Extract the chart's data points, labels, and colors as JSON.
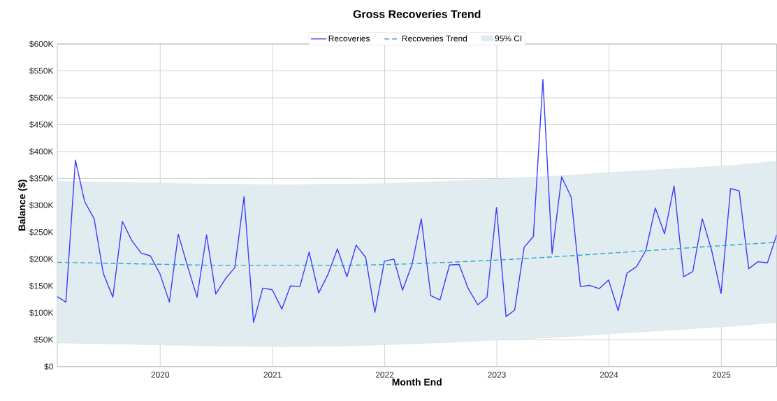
{
  "chart_data": {
    "type": "line",
    "title": "Gross Recoveries Trend",
    "xlabel": "Month End",
    "ylabel": "Balance ($)",
    "xlim": [
      "2019-01-31",
      "2025-06-30"
    ],
    "xticks": [
      {
        "value": "2020-01-01",
        "label": "2020"
      },
      {
        "value": "2021-01-01",
        "label": "2021"
      },
      {
        "value": "2022-01-01",
        "label": "2022"
      },
      {
        "value": "2023-01-01",
        "label": "2023"
      },
      {
        "value": "2024-01-01",
        "label": "2024"
      },
      {
        "value": "2025-01-01",
        "label": "2025"
      }
    ],
    "ylim": [
      0,
      600000
    ],
    "yticks": [
      {
        "value": 0,
        "label": "$0"
      },
      {
        "value": 50000,
        "label": "$50K"
      },
      {
        "value": 100000,
        "label": "$100K"
      },
      {
        "value": 150000,
        "label": "$150K"
      },
      {
        "value": 200000,
        "label": "$200K"
      },
      {
        "value": 250000,
        "label": "$250K"
      },
      {
        "value": 300000,
        "label": "$300K"
      },
      {
        "value": 350000,
        "label": "$350K"
      },
      {
        "value": 400000,
        "label": "$400K"
      },
      {
        "value": 450000,
        "label": "$450K"
      },
      {
        "value": 500000,
        "label": "$500K"
      },
      {
        "value": 550000,
        "label": "$550K"
      },
      {
        "value": 600000,
        "label": "$600K"
      }
    ],
    "grid": true,
    "legend": "top",
    "series": [
      {
        "name": "Recoveries",
        "color": "#3b3bff",
        "x": [
          "2019-01-31",
          "2019-02-28",
          "2019-03-31",
          "2019-04-30",
          "2019-05-31",
          "2019-06-30",
          "2019-07-31",
          "2019-08-31",
          "2019-09-30",
          "2019-10-31",
          "2019-11-30",
          "2019-12-31",
          "2020-01-31",
          "2020-02-29",
          "2020-03-31",
          "2020-04-30",
          "2020-05-31",
          "2020-06-30",
          "2020-07-31",
          "2020-08-31",
          "2020-09-30",
          "2020-10-31",
          "2020-11-30",
          "2020-12-31",
          "2021-01-31",
          "2021-02-28",
          "2021-03-31",
          "2021-04-30",
          "2021-05-31",
          "2021-06-30",
          "2021-07-31",
          "2021-08-31",
          "2021-09-30",
          "2021-10-31",
          "2021-11-30",
          "2021-12-31",
          "2022-01-31",
          "2022-02-28",
          "2022-03-31",
          "2022-04-30",
          "2022-05-31",
          "2022-06-30",
          "2022-07-31",
          "2022-08-31",
          "2022-09-30",
          "2022-10-31",
          "2022-11-30",
          "2022-12-31",
          "2023-01-31",
          "2023-02-28",
          "2023-03-31",
          "2023-04-30",
          "2023-05-31",
          "2023-06-30",
          "2023-07-31",
          "2023-08-31",
          "2023-09-30",
          "2023-10-31",
          "2023-11-30",
          "2023-12-31",
          "2024-01-31",
          "2024-02-29",
          "2024-03-31",
          "2024-04-30",
          "2024-05-31",
          "2024-06-30",
          "2024-07-31",
          "2024-08-31",
          "2024-09-30",
          "2024-10-31",
          "2024-11-30",
          "2024-12-31",
          "2025-01-31",
          "2025-02-28",
          "2025-03-31",
          "2025-04-30",
          "2025-05-31",
          "2025-06-30"
        ],
        "values": [
          130000,
          120000,
          384000,
          307000,
          275000,
          173000,
          129000,
          270000,
          235000,
          211000,
          206000,
          173000,
          120000,
          246000,
          185000,
          129000,
          245000,
          135000,
          163000,
          184000,
          316000,
          82000,
          146000,
          143000,
          107000,
          150000,
          149000,
          213000,
          137000,
          171000,
          219000,
          167000,
          226000,
          203000,
          101000,
          196000,
          200000,
          142000,
          190000,
          275000,
          132000,
          124000,
          189000,
          190000,
          145000,
          115000,
          129000,
          296000,
          93000,
          105000,
          222000,
          242000,
          534000,
          210000,
          353000,
          315000,
          149000,
          151000,
          145000,
          161000,
          104000,
          174000,
          186000,
          216000,
          295000,
          247000,
          336000,
          167000,
          177000,
          275000,
          217000,
          136000,
          331000,
          327000,
          182000,
          195000,
          193000,
          245000
        ]
      },
      {
        "name": "Recoveries Trend",
        "color": "#2ca6cc",
        "line_style": "dashed",
        "x": [
          "2019-01-31",
          "2019-07-31",
          "2020-01-31",
          "2020-07-31",
          "2021-01-31",
          "2021-07-31",
          "2022-01-31",
          "2022-07-31",
          "2023-01-31",
          "2023-07-31",
          "2024-01-31",
          "2024-07-31",
          "2025-01-31",
          "2025-06-30"
        ],
        "values": [
          194000,
          192000,
          190000,
          188000,
          188000,
          188000,
          190000,
          194000,
          199000,
          205000,
          212000,
          219000,
          226000,
          231000
        ],
        "lower": [
          44000,
          42000,
          40000,
          38000,
          37000,
          38000,
          41000,
          45000,
          50000,
          55000,
          62000,
          68000,
          75000,
          82000
        ],
        "upper": [
          345000,
          343000,
          341000,
          339000,
          338000,
          339000,
          341000,
          345000,
          350000,
          355000,
          362000,
          368000,
          374000,
          382000
        ]
      }
    ],
    "annotations": [
      "95% CI"
    ]
  }
}
